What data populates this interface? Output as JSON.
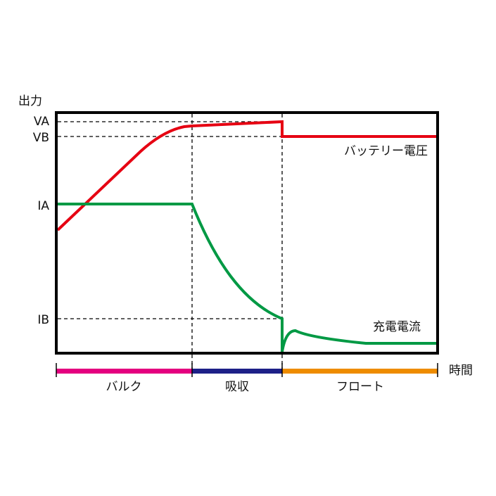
{
  "y_axis_label": "出力",
  "x_axis_label": "時間",
  "levels": {
    "va": "VA",
    "vb": "VB",
    "ia": "IA",
    "ib": "IB"
  },
  "curves": {
    "voltage": "バッテリー電圧",
    "current": "充電電流"
  },
  "phases": [
    "バルク",
    "吸収",
    "フロート"
  ]
}
